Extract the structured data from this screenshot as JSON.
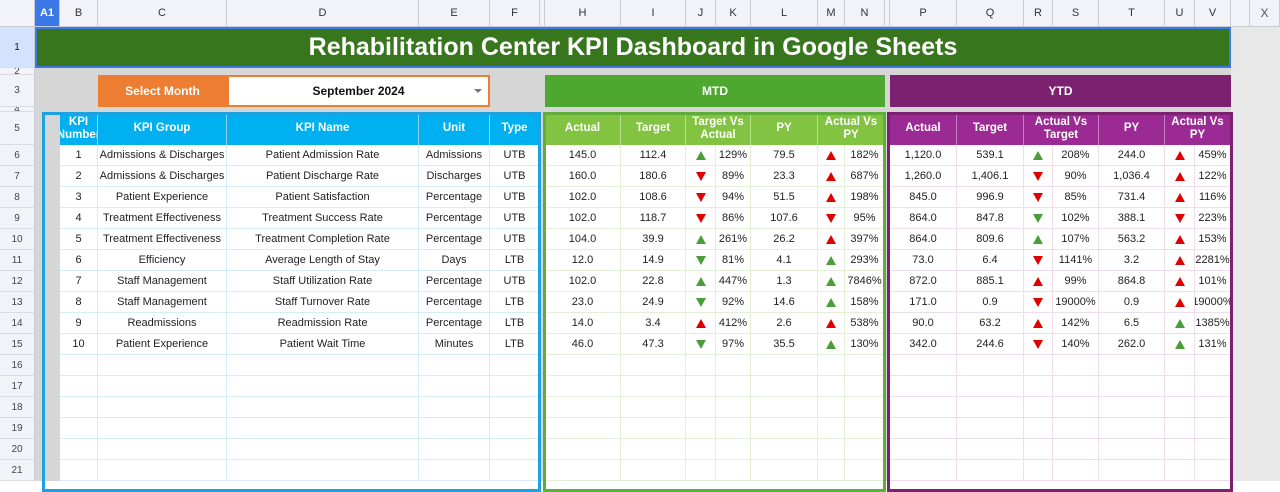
{
  "sheet": {
    "column_letters": [
      "A1",
      "B",
      "C",
      "D",
      "E",
      "F",
      "",
      "H",
      "I",
      "J",
      "K",
      "L",
      "M",
      "N",
      "",
      "P",
      "Q",
      "R",
      "S",
      "T",
      "U",
      "V",
      "",
      "X"
    ],
    "row_numbers": [
      "1",
      "2",
      "3",
      "4",
      "5",
      "6",
      "7",
      "8",
      "9",
      "10",
      "11",
      "12",
      "13",
      "14",
      "15",
      "16",
      "17",
      "18",
      "19",
      "20",
      "21"
    ],
    "close_label": "X"
  },
  "title": "Rehabilitation Center KPI Dashboard in Google Sheets",
  "selector": {
    "label": "Select Month",
    "value": "September 2024"
  },
  "sections": {
    "mtd": "MTD",
    "ytd": "YTD"
  },
  "colors": {
    "title": "#38761d",
    "selector": "#ed7d31",
    "kpi_header": "#00b0f0",
    "mtd": "#4ea72e",
    "mtd_header": "#82c341",
    "ytd": "#7b2170",
    "ytd_header": "#9c2a94",
    "arrow_green": "#4a9e3a",
    "arrow_red": "#e00000"
  },
  "kpi_headers": [
    "KPI Number",
    "KPI Group",
    "KPI Name",
    "Unit",
    "Type"
  ],
  "mtd_headers": [
    "Actual",
    "Target",
    "Target Vs Actual",
    "PY",
    "Actual Vs PY"
  ],
  "ytd_headers": [
    "Actual",
    "Target",
    "Actual Vs Target",
    "PY",
    "Actual Vs PY"
  ],
  "kpis": [
    {
      "num": "1",
      "group": "Admissions & Discharges",
      "name": "Patient Admission Rate",
      "unit": "Admissions",
      "type": "UTB",
      "mtd": {
        "actual": "145.0",
        "target": "112.4",
        "tva_icon": "up-green",
        "tva": "129%",
        "py": "79.5",
        "avp_icon": "up-red",
        "avp": "182%"
      },
      "ytd": {
        "actual": "1,120.0",
        "target": "539.1",
        "avt_icon": "up-green",
        "avt": "208%",
        "py": "244.0",
        "avp_icon": "up-red",
        "avp": "459%"
      }
    },
    {
      "num": "2",
      "group": "Admissions & Discharges",
      "name": "Patient Discharge Rate",
      "unit": "Discharges",
      "type": "UTB",
      "mtd": {
        "actual": "160.0",
        "target": "180.6",
        "tva_icon": "down-red",
        "tva": "89%",
        "py": "23.3",
        "avp_icon": "up-red",
        "avp": "687%"
      },
      "ytd": {
        "actual": "1,260.0",
        "target": "1,406.1",
        "avt_icon": "down-red",
        "avt": "90%",
        "py": "1,036.4",
        "avp_icon": "up-red",
        "avp": "122%"
      }
    },
    {
      "num": "3",
      "group": "Patient Experience",
      "name": "Patient Satisfaction",
      "unit": "Percentage",
      "type": "UTB",
      "mtd": {
        "actual": "102.0",
        "target": "108.6",
        "tva_icon": "down-red",
        "tva": "94%",
        "py": "51.5",
        "avp_icon": "up-red",
        "avp": "198%"
      },
      "ytd": {
        "actual": "845.0",
        "target": "996.9",
        "avt_icon": "down-red",
        "avt": "85%",
        "py": "731.4",
        "avp_icon": "up-red",
        "avp": "116%"
      }
    },
    {
      "num": "4",
      "group": "Treatment Effectiveness",
      "name": "Treatment Success Rate",
      "unit": "Percentage",
      "type": "UTB",
      "mtd": {
        "actual": "102.0",
        "target": "118.7",
        "tva_icon": "down-red",
        "tva": "86%",
        "py": "107.6",
        "avp_icon": "down-red",
        "avp": "95%"
      },
      "ytd": {
        "actual": "864.0",
        "target": "847.8",
        "avt_icon": "down-green",
        "avt": "102%",
        "py": "388.1",
        "avp_icon": "down-red",
        "avp": "223%"
      }
    },
    {
      "num": "5",
      "group": "Treatment Effectiveness",
      "name": "Treatment Completion Rate",
      "unit": "Percentage",
      "type": "UTB",
      "mtd": {
        "actual": "104.0",
        "target": "39.9",
        "tva_icon": "up-green",
        "tva": "261%",
        "py": "26.2",
        "avp_icon": "up-red",
        "avp": "397%"
      },
      "ytd": {
        "actual": "864.0",
        "target": "809.6",
        "avt_icon": "up-green",
        "avt": "107%",
        "py": "563.2",
        "avp_icon": "up-red",
        "avp": "153%"
      }
    },
    {
      "num": "6",
      "group": "Efficiency",
      "name": "Average Length of Stay",
      "unit": "Days",
      "type": "LTB",
      "mtd": {
        "actual": "12.0",
        "target": "14.9",
        "tva_icon": "down-green",
        "tva": "81%",
        "py": "4.1",
        "avp_icon": "up-green",
        "avp": "293%"
      },
      "ytd": {
        "actual": "73.0",
        "target": "6.4",
        "avt_icon": "down-red",
        "avt": "1141%",
        "py": "3.2",
        "avp_icon": "up-red",
        "avp": "2281%"
      }
    },
    {
      "num": "7",
      "group": "Staff Management",
      "name": "Staff Utilization Rate",
      "unit": "Percentage",
      "type": "UTB",
      "mtd": {
        "actual": "102.0",
        "target": "22.8",
        "tva_icon": "up-green",
        "tva": "447%",
        "py": "1.3",
        "avp_icon": "up-green",
        "avp": "7846%"
      },
      "ytd": {
        "actual": "872.0",
        "target": "885.1",
        "avt_icon": "up-red",
        "avt": "99%",
        "py": "864.8",
        "avp_icon": "up-red",
        "avp": "101%"
      }
    },
    {
      "num": "8",
      "group": "Staff Management",
      "name": "Staff Turnover Rate",
      "unit": "Percentage",
      "type": "LTB",
      "mtd": {
        "actual": "23.0",
        "target": "24.9",
        "tva_icon": "down-green",
        "tva": "92%",
        "py": "14.6",
        "avp_icon": "up-green",
        "avp": "158%"
      },
      "ytd": {
        "actual": "171.0",
        "target": "0.9",
        "avt_icon": "down-red",
        "avt": "19000%",
        "py": "0.9",
        "avp_icon": "up-red",
        "avp": "19000%"
      }
    },
    {
      "num": "9",
      "group": "Readmissions",
      "name": "Readmission Rate",
      "unit": "Percentage",
      "type": "LTB",
      "mtd": {
        "actual": "14.0",
        "target": "3.4",
        "tva_icon": "up-red",
        "tva": "412%",
        "py": "2.6",
        "avp_icon": "up-red",
        "avp": "538%"
      },
      "ytd": {
        "actual": "90.0",
        "target": "63.2",
        "avt_icon": "up-red",
        "avt": "142%",
        "py": "6.5",
        "avp_icon": "up-green",
        "avp": "1385%"
      }
    },
    {
      "num": "10",
      "group": "Patient Experience",
      "name": "Patient Wait Time",
      "unit": "Minutes",
      "type": "LTB",
      "mtd": {
        "actual": "46.0",
        "target": "47.3",
        "tva_icon": "down-green",
        "tva": "97%",
        "py": "35.5",
        "avp_icon": "up-green",
        "avp": "130%"
      },
      "ytd": {
        "actual": "342.0",
        "target": "244.6",
        "avt_icon": "down-red",
        "avt": "140%",
        "py": "262.0",
        "avp_icon": "up-green",
        "avp": "131%"
      }
    }
  ]
}
